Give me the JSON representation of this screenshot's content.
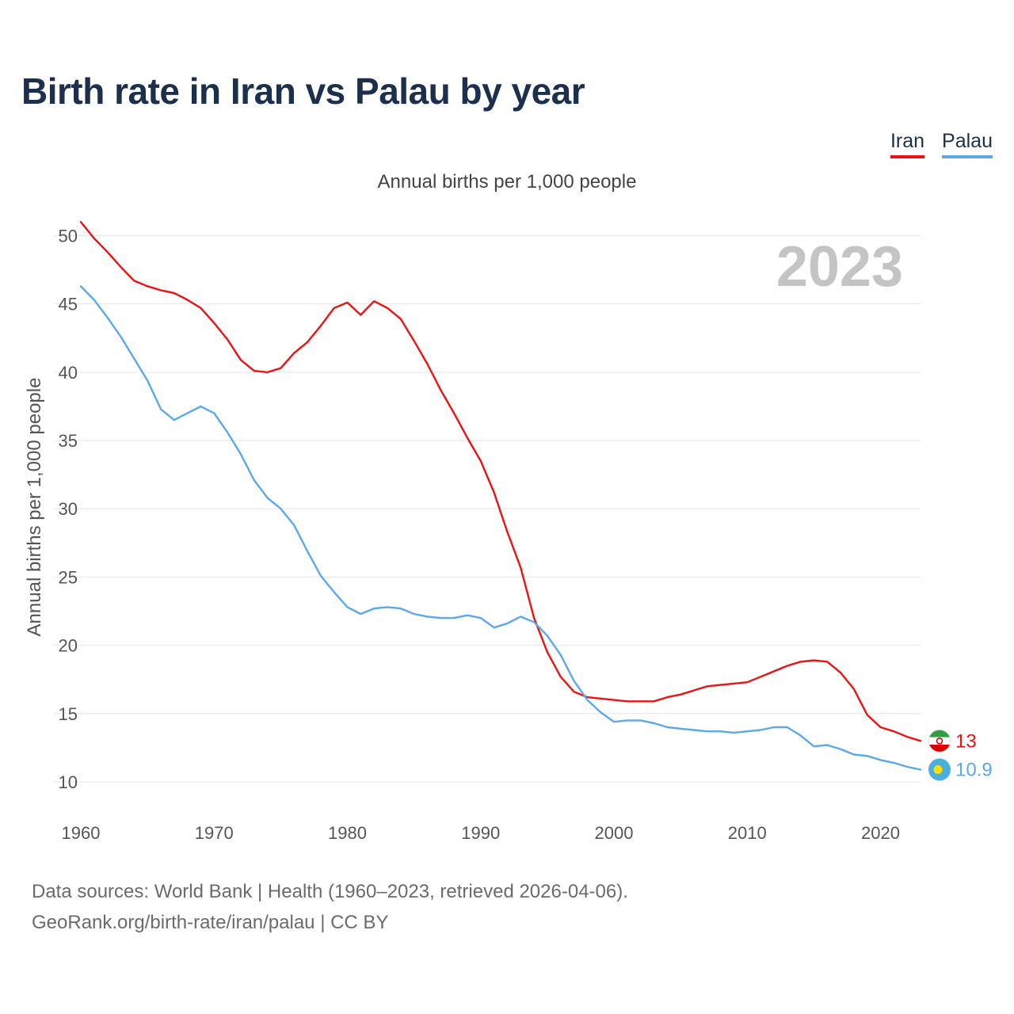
{
  "title": "Birth rate in Iran vs Palau by year",
  "subtitle": "Annual births per 1,000 people",
  "legend": [
    {
      "name": "Iran",
      "color": "#ee1111"
    },
    {
      "name": "Palau",
      "color": "#5ba8ea"
    }
  ],
  "source": {
    "line1": "Data sources: World Bank | Health (1960–2023, retrieved 2026-04-06).",
    "line2": "GeoRank.org/birth-rate/iran/palau | CC BY"
  },
  "chart_data": {
    "type": "line",
    "title": "Birth rate in Iran vs Palau by year",
    "ylabel": "Annual births per 1,000 people",
    "xlabel": "",
    "year_label": "2023",
    "xlim": [
      1960,
      2023
    ],
    "ylim": [
      10,
      52
    ],
    "x_ticks": [
      "1960",
      "1970",
      "1980",
      "1990",
      "2000",
      "2010",
      "2020"
    ],
    "y_ticks": [
      "10",
      "15",
      "20",
      "25",
      "30",
      "35",
      "40",
      "45",
      "50"
    ],
    "grid": true,
    "legend_position": "top-right",
    "x": [
      1960,
      1961,
      1962,
      1963,
      1964,
      1965,
      1966,
      1967,
      1968,
      1969,
      1970,
      1971,
      1972,
      1973,
      1974,
      1975,
      1976,
      1977,
      1978,
      1979,
      1980,
      1981,
      1982,
      1983,
      1984,
      1985,
      1986,
      1987,
      1988,
      1989,
      1990,
      1991,
      1992,
      1993,
      1994,
      1995,
      1996,
      1997,
      1998,
      1999,
      2000,
      2001,
      2002,
      2003,
      2004,
      2005,
      2006,
      2007,
      2008,
      2009,
      2010,
      2011,
      2012,
      2013,
      2014,
      2015,
      2016,
      2017,
      2018,
      2019,
      2020,
      2021,
      2022,
      2023
    ],
    "series": [
      {
        "name": "Iran",
        "color": "#ee1111",
        "end_label": "13",
        "flag": "iran-flag",
        "values": [
          51.0,
          49.8,
          48.8,
          47.7,
          46.7,
          46.3,
          46.0,
          45.8,
          45.3,
          44.7,
          43.6,
          42.4,
          40.9,
          40.1,
          40.0,
          40.3,
          41.4,
          42.2,
          43.4,
          44.7,
          45.1,
          44.2,
          45.2,
          44.7,
          43.9,
          42.3,
          40.6,
          38.7,
          37.0,
          35.2,
          33.5,
          31.2,
          28.3,
          25.7,
          22.0,
          19.5,
          17.7,
          16.6,
          16.2,
          16.1,
          16.0,
          15.9,
          15.9,
          15.9,
          16.2,
          16.4,
          16.7,
          17.0,
          17.1,
          17.2,
          17.3,
          17.7,
          18.1,
          18.5,
          18.8,
          18.9,
          18.8,
          18.0,
          16.8,
          14.9,
          14.0,
          13.7,
          13.3,
          13.0
        ]
      },
      {
        "name": "Palau",
        "color": "#5ba8ea",
        "end_label": "10.9",
        "flag": "palau-flag",
        "values": [
          46.3,
          45.3,
          44.0,
          42.6,
          41.0,
          39.4,
          37.3,
          36.5,
          37.0,
          37.5,
          37.0,
          35.6,
          34.0,
          32.1,
          30.8,
          30.0,
          28.8,
          26.9,
          25.1,
          23.9,
          22.8,
          22.3,
          22.7,
          22.8,
          22.7,
          22.3,
          22.1,
          22.0,
          22.0,
          22.2,
          22.0,
          21.3,
          21.6,
          22.1,
          21.7,
          20.7,
          19.3,
          17.4,
          16.0,
          15.1,
          14.4,
          14.5,
          14.5,
          14.3,
          14.0,
          13.9,
          13.8,
          13.7,
          13.7,
          13.6,
          13.7,
          13.8,
          14.0,
          14.0,
          13.4,
          12.6,
          12.7,
          12.4,
          12.0,
          11.9,
          11.6,
          11.4,
          11.1,
          10.9
        ]
      }
    ]
  }
}
